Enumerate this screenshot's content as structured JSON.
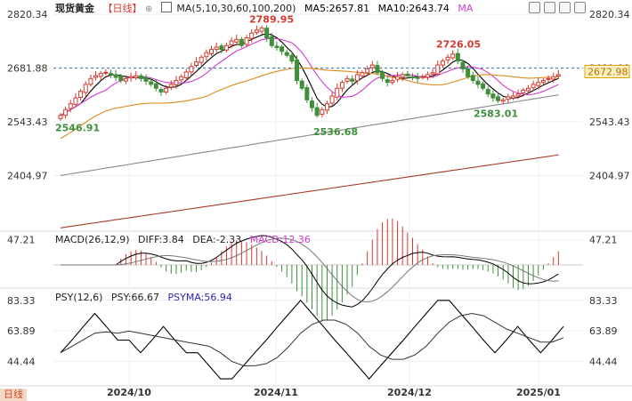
{
  "header": {
    "symbol_label": "现货黄金",
    "period_label": "【日线】",
    "period_icon": "target-icon",
    "ma_label": "MA(5,10,30,60,100,200)",
    "ma5_label": "MA5:2657.81",
    "ma10_label": "MA10:2643.74",
    "ma_tail_label": "MA"
  },
  "macd_legend": {
    "title": "MACD(26,12,9)",
    "diff": "DIFF:3.84",
    "dea": "DEA:-2.33",
    "macd": "MACD:12.36"
  },
  "psy_legend": {
    "title": "PSY(12,6)",
    "psy": "PSY:66.67",
    "psyma": "PSYMA:56.94"
  },
  "bottom_tag": "日线",
  "toolbar_icons": [
    "grid-icon",
    "settings-icon",
    "chart-icon",
    "expand-icon"
  ],
  "colors": {
    "up": "#d23a2e",
    "down": "#3f8f3a",
    "ma5": "#000000",
    "ma10": "#d23ad0",
    "ma30": "#e08a1e",
    "ma60": "#888888",
    "ma100": "#aa3a2a",
    "price_line": "#2a6db5",
    "current_price_bg": "#fff1c2"
  },
  "chart_data": [
    {
      "type": "candlestick",
      "title": "",
      "x_ticks": [
        "2024/10",
        "2024/11",
        "2024/12",
        "2025/01"
      ],
      "y_ticks": [
        2820.34,
        2681.88,
        2543.43,
        2404.97
      ],
      "ylim": [
        2266.0,
        2830.0
      ],
      "reference_line": 2681.88,
      "current_price": 2672.98,
      "annotations": [
        {
          "label": "2789.95",
          "value": 2789.95,
          "kind": "high"
        },
        {
          "label": "2726.05",
          "value": 2726.05,
          "kind": "high"
        },
        {
          "label": "2546.91",
          "value": 2546.91,
          "kind": "low"
        },
        {
          "label": "2536.68",
          "value": 2536.68,
          "kind": "low"
        },
        {
          "label": "2583.01",
          "value": 2583.01,
          "kind": "low"
        }
      ],
      "closes": [
        2560,
        2575,
        2590,
        2605,
        2622,
        2640,
        2655,
        2662,
        2668,
        2671,
        2665,
        2658,
        2650,
        2655,
        2660,
        2662,
        2655,
        2648,
        2640,
        2630,
        2620,
        2630,
        2640,
        2650,
        2660,
        2672,
        2686,
        2698,
        2710,
        2722,
        2730,
        2736,
        2730,
        2740,
        2752,
        2756,
        2740,
        2760,
        2772,
        2780,
        2785,
        2760,
        2740,
        2735,
        2725,
        2715,
        2700,
        2650,
        2630,
        2600,
        2580,
        2560,
        2575,
        2590,
        2610,
        2630,
        2645,
        2655,
        2648,
        2665,
        2670,
        2680,
        2690,
        2670,
        2655,
        2645,
        2650,
        2660,
        2665,
        2662,
        2658,
        2655,
        2660,
        2665,
        2670,
        2690,
        2700,
        2710,
        2718,
        2700,
        2680,
        2660,
        2650,
        2640,
        2630,
        2615,
        2605,
        2598,
        2600,
        2608,
        2610,
        2615,
        2625,
        2630,
        2640,
        2645,
        2650,
        2655,
        2660,
        2665
      ],
      "series": [
        {
          "name": "MA5"
        },
        {
          "name": "MA10"
        },
        {
          "name": "MA30"
        },
        {
          "name": "MA60"
        },
        {
          "name": "MA100"
        }
      ]
    },
    {
      "type": "macd",
      "y_ticks": [
        47.21
      ],
      "ylim": [
        -40,
        60
      ],
      "diff": 3.84,
      "dea": -2.33,
      "macd": 12.36
    },
    {
      "type": "psy",
      "y_ticks": [
        83.33,
        63.89,
        44.44
      ],
      "ylim": [
        30,
        90
      ],
      "psy_values": [
        50,
        58,
        66.67,
        75,
        66.67,
        58,
        58,
        50,
        58,
        66.67,
        58,
        50,
        50,
        41.67,
        33.33,
        33.33,
        41.67,
        50,
        58,
        66.67,
        75,
        83.33,
        75,
        66.67,
        58,
        50,
        41.67,
        33.33,
        41.67,
        50,
        58,
        66.67,
        75,
        83.33,
        83.33,
        75,
        66.67,
        58,
        50,
        58,
        66.67,
        58,
        50,
        58,
        66.67
      ],
      "psy": 66.67,
      "psyma": 56.94
    }
  ]
}
